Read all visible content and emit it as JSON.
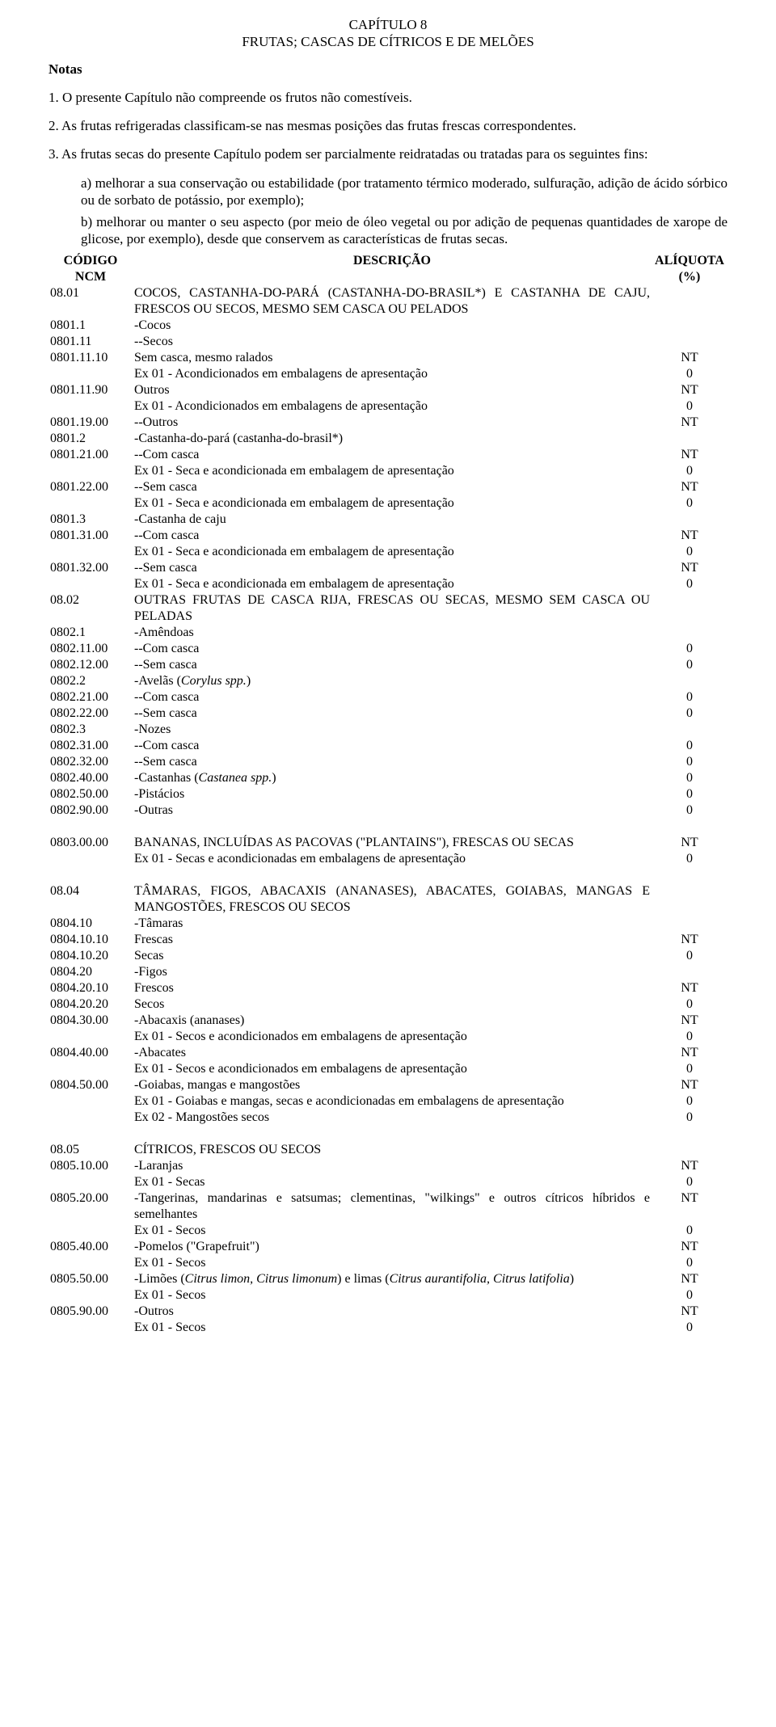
{
  "chapter_line1": "CAPÍTULO 8",
  "chapter_line2": "FRUTAS; CASCAS DE CÍTRICOS E DE MELÕES",
  "notes_heading": "Notas",
  "note1": "1. O presente Capítulo não compreende os frutos não comestíveis.",
  "note2": "2. As frutas refrigeradas classificam-se nas mesmas posições das frutas frescas correspondentes.",
  "note3_intro": "3. As frutas secas do presente Capítulo podem ser parcialmente reidratadas ou tratadas para os seguintes fins:",
  "note3_a": "a) melhorar a sua conservação ou estabilidade (por tratamento térmico moderado, sulfuração, adição de ácido sórbico ou de sorbato de potássio, por exemplo);",
  "note3_b": "b) melhorar ou manter o seu aspecto (por meio de óleo vegetal ou por adição de pequenas quantidades de xarope de glicose, por exemplo), desde que conservem as características de frutas secas.",
  "header_code1": "CÓDIGO",
  "header_code2": "NCM",
  "header_desc": "DESCRIÇÃO",
  "header_rate1": "ALÍQUOTA",
  "header_rate2": "(%)",
  "rows": [
    {
      "code": "08.01",
      "desc": "COCOS, CASTANHA-DO-PARÁ (CASTANHA-DO-BRASIL*) E CASTANHA DE CAJU, FRESCOS OU SECOS, MESMO SEM CASCA OU PELADOS",
      "rate": "",
      "indent": 0,
      "justify": true
    },
    {
      "code": "0801.1",
      "desc": "-Cocos",
      "rate": "",
      "indent": 0
    },
    {
      "code": "0801.11",
      "desc": "--Secos",
      "rate": "",
      "indent": 0
    },
    {
      "code": "0801.11.10",
      "desc": "Sem casca, mesmo ralados",
      "rate": "NT",
      "indent": 2
    },
    {
      "code": "",
      "desc": "Ex 01 - Acondicionados em embalagens de apresentação",
      "rate": "0",
      "indent": 1
    },
    {
      "code": "0801.11.90",
      "desc": "Outros",
      "rate": "NT",
      "indent": 2
    },
    {
      "code": "",
      "desc": "Ex 01 - Acondicionados em embalagens de apresentação",
      "rate": "0",
      "indent": 1
    },
    {
      "code": "0801.19.00",
      "desc": "--Outros",
      "rate": "NT",
      "indent": 0
    },
    {
      "code": "0801.2",
      "desc": "-Castanha-do-pará (castanha-do-brasil*)",
      "rate": "",
      "indent": 0
    },
    {
      "code": "0801.21.00",
      "desc": "--Com casca",
      "rate": "NT",
      "indent": 0
    },
    {
      "code": "",
      "desc": "Ex 01 - Seca e acondicionada em embalagem de apresentação",
      "rate": "0",
      "indent": 1
    },
    {
      "code": "0801.22.00",
      "desc": "--Sem casca",
      "rate": "NT",
      "indent": 0
    },
    {
      "code": "",
      "desc": "Ex 01 - Seca e acondicionada em embalagem de apresentação",
      "rate": "0",
      "indent": 1
    },
    {
      "code": "0801.3",
      "desc": "-Castanha de caju",
      "rate": "",
      "indent": 0
    },
    {
      "code": "0801.31.00",
      "desc": "--Com casca",
      "rate": "NT",
      "indent": 0
    },
    {
      "code": "",
      "desc": "Ex 01 - Seca e acondicionada em embalagem de apresentação",
      "rate": "0",
      "indent": 1
    },
    {
      "code": "0801.32.00",
      "desc": "--Sem casca",
      "rate": "NT",
      "indent": 0
    },
    {
      "code": "",
      "desc": "Ex 01 - Seca e acondicionada em embalagem de apresentação",
      "rate": "0",
      "indent": 1
    },
    {
      "code": "08.02",
      "desc": "OUTRAS FRUTAS DE CASCA RIJA, FRESCAS OU SECAS, MESMO SEM CASCA OU PELADAS",
      "rate": "",
      "indent": 0,
      "justify": true
    },
    {
      "code": "0802.1",
      "desc": "-Amêndoas",
      "rate": "",
      "indent": 0
    },
    {
      "code": "0802.11.00",
      "desc": "--Com casca",
      "rate": "0",
      "indent": 0
    },
    {
      "code": "0802.12.00",
      "desc": "--Sem casca",
      "rate": "0",
      "indent": 0
    },
    {
      "code": "0802.2",
      "desc": "-Avelãs (<i>Corylus spp.</i>)",
      "rate": "",
      "indent": 0,
      "html": true
    },
    {
      "code": "0802.21.00",
      "desc": "--Com casca",
      "rate": "0",
      "indent": 0
    },
    {
      "code": "0802.22.00",
      "desc": "--Sem casca",
      "rate": "0",
      "indent": 0
    },
    {
      "code": "0802.3",
      "desc": "-Nozes",
      "rate": "",
      "indent": 0
    },
    {
      "code": "0802.31.00",
      "desc": "--Com casca",
      "rate": "0",
      "indent": 0
    },
    {
      "code": "0802.32.00",
      "desc": "--Sem casca",
      "rate": "0",
      "indent": 0
    },
    {
      "code": "0802.40.00",
      "desc": "-Castanhas (<i>Castanea spp.</i>)",
      "rate": "0",
      "indent": 0,
      "html": true
    },
    {
      "code": "0802.50.00",
      "desc": "-Pistácios",
      "rate": "0",
      "indent": 0
    },
    {
      "code": "0802.90.00",
      "desc": "-Outras",
      "rate": "0",
      "indent": 0
    },
    {
      "spacer": true
    },
    {
      "code": "0803.00.00",
      "desc": "BANANAS, INCLUÍDAS AS PACOVAS (\"PLANTAINS\"), FRESCAS OU SECAS",
      "rate": "NT",
      "indent": 0
    },
    {
      "code": "",
      "desc": "Ex 01 - Secas e acondicionadas em embalagens de apresentação",
      "rate": "0",
      "indent": 1
    },
    {
      "spacer": true
    },
    {
      "code": "08.04",
      "desc": "TÂMARAS, FIGOS, ABACAXIS (ANANASES), ABACATES, GOIABAS, MANGAS E MANGOSTÕES, FRESCOS OU SECOS",
      "rate": "",
      "indent": 0,
      "justify": true
    },
    {
      "code": "0804.10",
      "desc": "-Tâmaras",
      "rate": "",
      "indent": 0
    },
    {
      "code": "0804.10.10",
      "desc": "Frescas",
      "rate": "NT",
      "indent": 2
    },
    {
      "code": "0804.10.20",
      "desc": "Secas",
      "rate": "0",
      "indent": 2
    },
    {
      "code": "0804.20",
      "desc": "-Figos",
      "rate": "",
      "indent": 0
    },
    {
      "code": "0804.20.10",
      "desc": "Frescos",
      "rate": "NT",
      "indent": 2
    },
    {
      "code": "0804.20.20",
      "desc": "Secos",
      "rate": "0",
      "indent": 2
    },
    {
      "code": "0804.30.00",
      "desc": "-Abacaxis (ananases)",
      "rate": "NT",
      "indent": 0
    },
    {
      "code": "",
      "desc": "Ex 01 - Secos e acondicionados em embalagens de apresentação",
      "rate": "0",
      "indent": 1
    },
    {
      "code": "0804.40.00",
      "desc": "-Abacates",
      "rate": "NT",
      "indent": 0
    },
    {
      "code": "",
      "desc": "Ex 01 - Secos e acondicionados em embalagens de apresentação",
      "rate": "0",
      "indent": 1
    },
    {
      "code": "0804.50.00",
      "desc": "-Goiabas, mangas e mangostões",
      "rate": "NT",
      "indent": 0
    },
    {
      "code": "",
      "desc": "Ex 01 - Goiabas e mangas, secas e acondicionadas em embalagens de apresentação",
      "rate": "0",
      "indent": 1
    },
    {
      "code": "",
      "desc": "Ex 02 - Mangostões secos",
      "rate": "0",
      "indent": 1
    },
    {
      "spacer": true
    },
    {
      "code": "08.05",
      "desc": "CÍTRICOS, FRESCOS OU SECOS",
      "rate": "",
      "indent": 0
    },
    {
      "code": "0805.10.00",
      "desc": "-Laranjas",
      "rate": "NT",
      "indent": 0
    },
    {
      "code": "",
      "desc": "Ex 01 - Secas",
      "rate": "0",
      "indent": 1
    },
    {
      "code": "0805.20.00",
      "desc": "-Tangerinas, mandarinas e satsumas; clementinas, \"wilkings\" e outros cítricos híbridos e semelhantes",
      "rate": "NT",
      "indent": 0,
      "justify": true
    },
    {
      "code": "",
      "desc": "Ex 01 - Secos",
      "rate": "0",
      "indent": 1
    },
    {
      "code": "0805.40.00",
      "desc": "-Pomelos (\"Grapefruit\")",
      "rate": "NT",
      "indent": 0
    },
    {
      "code": "",
      "desc": "Ex 01 - Secos",
      "rate": "0",
      "indent": 1
    },
    {
      "code": "0805.50.00",
      "desc": "-Limões (<i>Citrus limon, Citrus limonum</i>) e limas (<i>Citrus aurantifolia, Citrus latifolia</i>)",
      "rate": "NT",
      "indent": 0,
      "html": true
    },
    {
      "code": "",
      "desc": "Ex 01 - Secos",
      "rate": "0",
      "indent": 1
    },
    {
      "code": "0805.90.00",
      "desc": "-Outros",
      "rate": "NT",
      "indent": 0
    },
    {
      "code": "",
      "desc": "Ex 01 - Secos",
      "rate": "0",
      "indent": 1
    }
  ]
}
